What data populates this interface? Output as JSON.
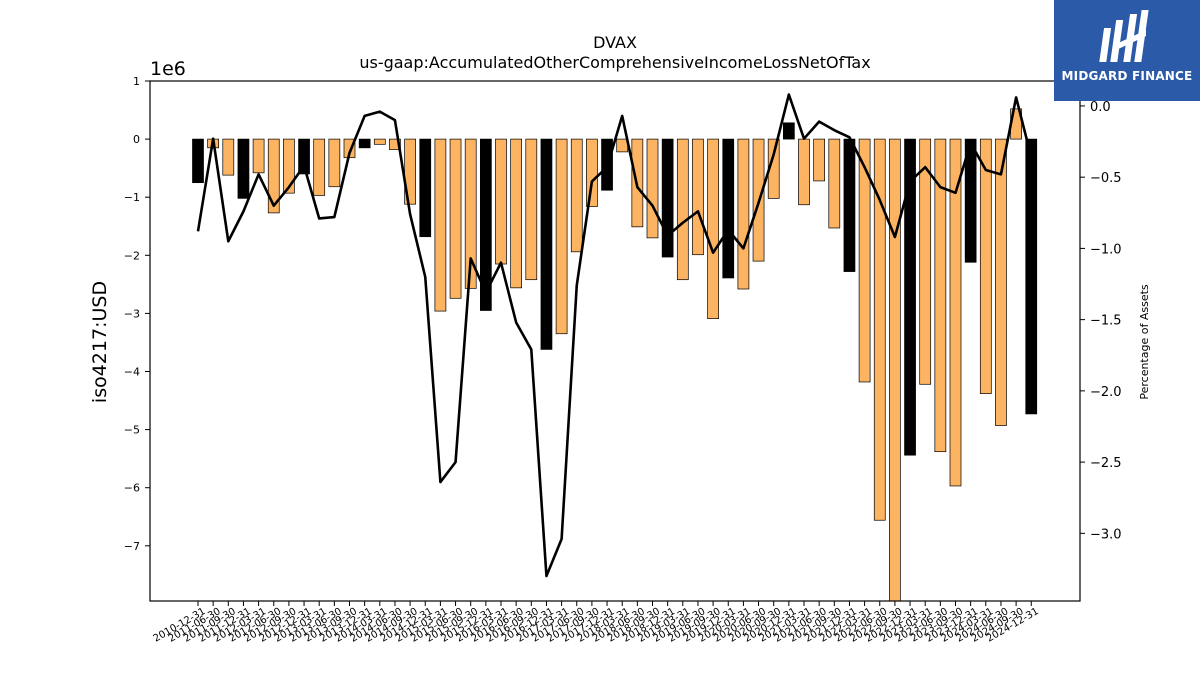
{
  "brand": {
    "name": "MIDGARD FINANCE",
    "logo_icon": "midgard-logo-icon",
    "color": "#2a5aa8"
  },
  "chart_data": {
    "type": "bar",
    "title": "DVAX",
    "subtitle": "us-gaap:AccumulatedOtherComprehensiveIncomeLossNetOfTax",
    "ylabel": "iso4217:USD",
    "y2label": "Percentage of Assets",
    "y_offset_label": "1e6",
    "ylim": [
      -7.95,
      1.0
    ],
    "y2lim": [
      -3.475,
      0.175
    ],
    "grid": false,
    "legend": "none",
    "categories": [
      "2010-12-31",
      "2011-06-30",
      "2011-09-30",
      "2011-12-31",
      "2012-03-31",
      "2012-06-30",
      "2012-09-30",
      "2012-12-31",
      "2013-03-31",
      "2013-06-30",
      "2013-09-30",
      "2013-12-31",
      "2014-03-31",
      "2014-06-30",
      "2014-09-30",
      "2014-12-31",
      "2015-03-31",
      "2015-06-30",
      "2015-09-30",
      "2015-12-31",
      "2016-03-31",
      "2016-06-30",
      "2016-09-30",
      "2016-12-31",
      "2017-03-31",
      "2017-06-30",
      "2017-09-30",
      "2017-12-31",
      "2018-03-31",
      "2018-06-30",
      "2018-09-30",
      "2018-12-31",
      "2019-03-31",
      "2019-06-30",
      "2019-09-30",
      "2019-12-31",
      "2020-03-31",
      "2020-06-30",
      "2020-09-30",
      "2020-12-31",
      "2021-03-31",
      "2021-06-30",
      "2021-09-30",
      "2021-12-31",
      "2022-03-31",
      "2022-06-30",
      "2022-09-30",
      "2022-12-31",
      "2023-03-31",
      "2023-06-30",
      "2023-09-30",
      "2023-12-31",
      "2024-03-31",
      "2024-06-30",
      "2024-09-30",
      "2024-12-31"
    ],
    "x_tick_labels": [
      "2010-12-31",
      "2011-06-30",
      "2011-09-30",
      "2011-12-31",
      "2012-03-31",
      "2012-06-30",
      "2012-09-30",
      "2012-12-31",
      "2013-03-31",
      "2013-06-30",
      "2013-09-30",
      "2013-12-31",
      "2014-03-31",
      "2014-06-30",
      "2014-09-30",
      "2014-12-31",
      "2015-03-31",
      "2015-06-30",
      "2015-09-30",
      "2015-12-31",
      "2016-03-31",
      "2016-06-30",
      "2016-09-30",
      "2016-12-31",
      "2017-03-31",
      "2017-06-30",
      "2017-09-30",
      "2017-12-31",
      "2018-03-31",
      "2018-06-30",
      "2018-09-30",
      "2018-12-31",
      "2019-03-31",
      "2019-06-30",
      "2019-09-30",
      "2019-12-31",
      "2020-03-31",
      "2020-06-30",
      "2020-09-30",
      "2020-12-31",
      "2021-03-31",
      "2021-06-30",
      "2021-09-30",
      "2021-12-31",
      "2022-03-31",
      "2022-06-30",
      "2022-09-30",
      "2022-12-31",
      "2023-03-31",
      "2023-06-30",
      "2023-09-30",
      "2023-12-31",
      "2024-03-31",
      "2024-06-30",
      "2024-09-30",
      "2024-12-31"
    ],
    "y_ticks": [
      1,
      0,
      -1,
      -2,
      -3,
      -4,
      -5,
      -6,
      -7
    ],
    "y2_ticks": [
      0.0,
      -0.5,
      -1.0,
      -1.5,
      -2.0,
      -2.5,
      -3.0
    ],
    "y2_tick_labels": [
      "0.0",
      "−0.5",
      "−1.0",
      "−1.5",
      "−2.0",
      "−2.5",
      "−3.0"
    ],
    "series": [
      {
        "type": "bar",
        "axis": "left",
        "values": [
          -0.75,
          -0.15,
          -0.62,
          -1.02,
          -0.58,
          -1.27,
          -0.93,
          -0.6,
          -0.97,
          -0.82,
          -0.32,
          -0.15,
          -0.09,
          -0.18,
          -1.12,
          -1.68,
          -2.96,
          -2.74,
          -2.57,
          -2.95,
          -2.15,
          -2.56,
          -2.42,
          -3.62,
          -3.35,
          -1.94,
          -1.16,
          -0.88,
          -0.22,
          -1.51,
          -1.7,
          -2.03,
          -2.42,
          -1.99,
          -3.09,
          -2.39,
          -2.58,
          -2.1,
          -1.02,
          0.28,
          -1.13,
          -0.72,
          -1.53,
          -2.28,
          -4.18,
          -6.56,
          -7.95,
          -5.44,
          -4.22,
          -5.38,
          -5.97,
          -2.12,
          -4.38,
          -4.93,
          0.52,
          -4.73
        ],
        "colors": [
          "#000000",
          "#fdb462",
          "#fdb462",
          "#000000",
          "#fdb462",
          "#fdb462",
          "#fdb462",
          "#000000",
          "#fdb462",
          "#fdb462",
          "#fdb462",
          "#000000",
          "#fdb462",
          "#fdb462",
          "#fdb462",
          "#000000",
          "#fdb462",
          "#fdb462",
          "#fdb462",
          "#000000",
          "#fdb462",
          "#fdb462",
          "#fdb462",
          "#000000",
          "#fdb462",
          "#fdb462",
          "#fdb462",
          "#000000",
          "#fdb462",
          "#fdb462",
          "#fdb462",
          "#000000",
          "#fdb462",
          "#fdb462",
          "#fdb462",
          "#000000",
          "#fdb462",
          "#fdb462",
          "#fdb462",
          "#000000",
          "#fdb462",
          "#fdb462",
          "#fdb462",
          "#000000",
          "#fdb462",
          "#fdb462",
          "#fdb462",
          "#000000",
          "#fdb462",
          "#fdb462",
          "#fdb462",
          "#000000",
          "#fdb462",
          "#fdb462",
          "#fdb462",
          "#000000"
        ]
      },
      {
        "type": "line",
        "axis": "right",
        "color": "#000000",
        "values": [
          -0.88,
          -0.23,
          -0.95,
          -0.74,
          -0.48,
          -0.7,
          -0.57,
          -0.42,
          -0.79,
          -0.78,
          -0.33,
          -0.07,
          -0.04,
          -0.1,
          -0.76,
          -1.2,
          -2.64,
          -2.5,
          -1.07,
          -1.31,
          -1.1,
          -1.52,
          -1.71,
          -3.3,
          -3.04,
          -1.26,
          -0.53,
          -0.43,
          -0.07,
          -0.57,
          -0.7,
          -0.91,
          -0.82,
          -0.74,
          -1.03,
          -0.87,
          -1.0,
          -0.68,
          -0.34,
          0.08,
          -0.23,
          -0.11,
          -0.17,
          -0.22,
          -0.43,
          -0.66,
          -0.92,
          -0.53,
          -0.43,
          -0.57,
          -0.61,
          -0.26,
          -0.45,
          -0.48,
          0.06,
          -0.36
        ]
      }
    ]
  }
}
